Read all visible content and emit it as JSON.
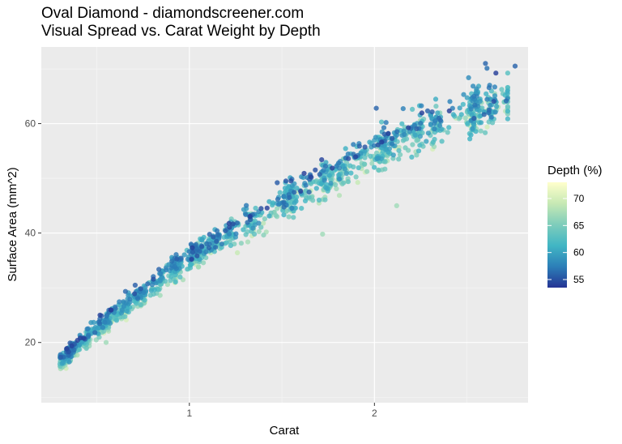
{
  "title_line1": "Oval Diamond - diamondscreener.com",
  "title_line2": "Visual Spread vs. Carat Weight by Depth",
  "chart_data": {
    "type": "scatter",
    "title": "Oval Diamond - diamondscreener.com",
    "subtitle": "Visual Spread vs. Carat Weight by Depth",
    "xlabel": "Carat",
    "ylabel": "Surface Area (mm^2)",
    "xlim": [
      0.2,
      2.83
    ],
    "ylim": [
      9.0,
      74.0
    ],
    "x_ticks": [
      1,
      2
    ],
    "x_tick_labels": [
      "1",
      "2"
    ],
    "y_ticks": [
      20,
      40,
      60
    ],
    "y_tick_labels": [
      "20",
      "40",
      "60"
    ],
    "grid": true,
    "legend": {
      "title": "Depth (%)",
      "position": "right",
      "type": "colorbar",
      "range": [
        53.5,
        73
      ],
      "ticks": [
        55,
        60,
        65,
        70
      ],
      "tick_labels": [
        "55",
        "60",
        "65",
        "70"
      ],
      "colors": [
        "#253494",
        "#2c7fb8",
        "#41b6c4",
        "#7fcdbb",
        "#c7e9b4",
        "#ffffcc"
      ]
    },
    "trend": {
      "description": "approximate central trend of the point cloud",
      "x": [
        0.3,
        0.5,
        0.7,
        1.0,
        1.2,
        1.5,
        1.7,
        2.0,
        2.2,
        2.5,
        2.7
      ],
      "y": [
        16.5,
        22.5,
        28.0,
        35.5,
        39.5,
        46.0,
        49.5,
        55.0,
        58.5,
        62.5,
        64.5
      ]
    },
    "x_clusters": [
      0.3,
      0.31,
      0.32,
      0.33,
      0.35,
      0.4,
      0.41,
      0.5,
      0.51,
      0.55,
      0.6,
      0.7,
      0.71,
      0.8,
      0.9,
      0.91,
      1.0,
      1.01,
      1.02,
      1.1,
      1.2,
      1.3,
      1.5,
      1.51,
      1.52,
      1.6,
      1.7,
      1.71,
      1.8,
      1.9,
      2.0,
      2.01,
      2.02,
      2.1,
      2.2,
      2.3,
      2.5,
      2.51,
      2.52,
      2.6,
      2.7
    ],
    "spread": {
      "description": "approximate vertical spread of surface area at selected carats (min, max)",
      "x": [
        0.3,
        0.5,
        0.7,
        1.0,
        1.5,
        2.0,
        2.5,
        2.7
      ],
      "y_min": [
        13.5,
        18.5,
        24.0,
        27.0,
        38.5,
        45.0,
        53.0,
        60.5
      ],
      "y_max": [
        17.5,
        25.0,
        30.5,
        39.5,
        51.0,
        62.5,
        69.5,
        70.5
      ]
    },
    "notable_points": [
      {
        "x": 0.55,
        "y": 20.0
      },
      {
        "x": 1.72,
        "y": 39.8
      },
      {
        "x": 2.12,
        "y": 45.0
      },
      {
        "x": 2.6,
        "y": 71.0
      },
      {
        "x": 2.76,
        "y": 70.5
      },
      {
        "x": 2.01,
        "y": 62.8
      }
    ]
  }
}
